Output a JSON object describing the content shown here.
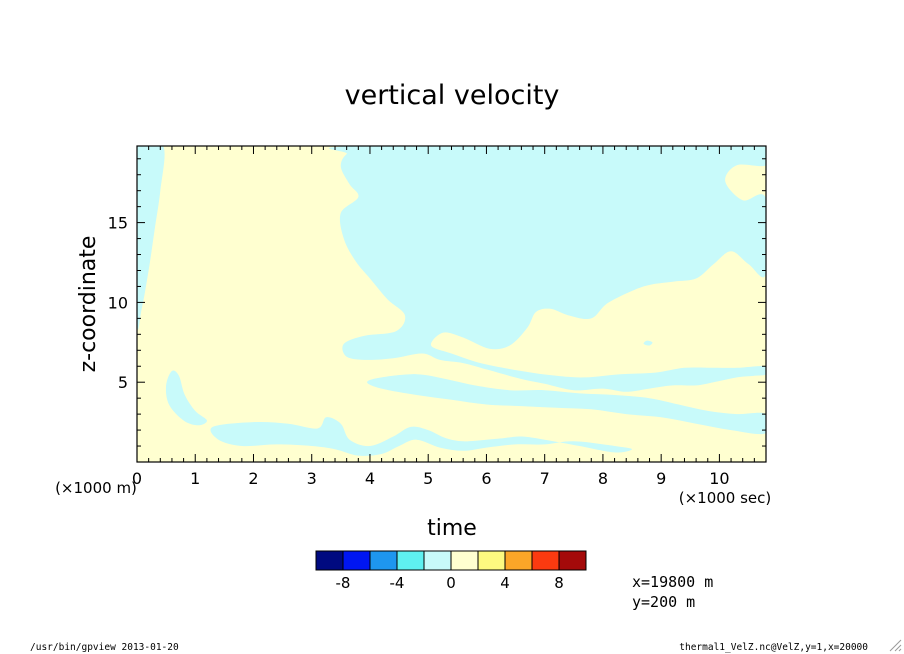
{
  "chart_data": {
    "type": "heatmap",
    "title": "vertical velocity",
    "xlabel": "time",
    "ylabel": "z-coordinate",
    "x_unit": "(×1000 sec)",
    "y_unit": "(×1000 m)",
    "xlim": [
      0,
      10.8
    ],
    "ylim": [
      0,
      19.8
    ],
    "x_ticks": [
      0,
      1,
      2,
      3,
      4,
      5,
      6,
      7,
      8,
      9,
      10
    ],
    "y_ticks": [
      5,
      10,
      15
    ],
    "colorbar": {
      "bins": [
        {
          "color": "#000a80",
          "lo": -10,
          "hi": -8
        },
        {
          "color": "#0016f2",
          "lo": -8,
          "hi": -6
        },
        {
          "color": "#1e96ef",
          "lo": -6,
          "hi": -4
        },
        {
          "color": "#5ff0f0",
          "lo": -4,
          "hi": -2
        },
        {
          "color": "#c8fafa",
          "lo": -2,
          "hi": 0
        },
        {
          "color": "#ffffd0",
          "lo": 0,
          "hi": 2
        },
        {
          "color": "#fdfa80",
          "lo": 2,
          "hi": 4
        },
        {
          "color": "#fba628",
          "lo": 4,
          "hi": 6
        },
        {
          "color": "#fb3a10",
          "lo": 6,
          "hi": 8
        },
        {
          "color": "#a40a0a",
          "lo": 8,
          "hi": 10
        }
      ],
      "tick_labels": [
        "-8",
        "-4",
        "0",
        "4",
        "8"
      ],
      "tick_values": [
        -8,
        -4,
        0,
        4,
        8
      ]
    },
    "negative_regions": [
      [
        [
          0,
          19.8
        ],
        [
          0.45,
          19.8
        ],
        [
          0.4,
          17
        ],
        [
          0.3,
          14.5
        ],
        [
          0.2,
          12
        ],
        [
          0.08,
          9.6
        ],
        [
          0,
          9.0
        ]
      ],
      [
        [
          0.6,
          5.7
        ],
        [
          0.72,
          5.4
        ],
        [
          0.82,
          4.2
        ],
        [
          1.0,
          3.2
        ],
        [
          1.2,
          2.6
        ],
        [
          1.05,
          2.3
        ],
        [
          0.8,
          2.6
        ],
        [
          0.55,
          3.6
        ],
        [
          0.5,
          4.8
        ]
      ],
      [
        [
          1.3,
          2.2
        ],
        [
          2.0,
          2.5
        ],
        [
          2.6,
          2.4
        ],
        [
          3.1,
          2.1
        ],
        [
          3.25,
          2.8
        ],
        [
          3.5,
          2.4
        ],
        [
          3.65,
          1.4
        ],
        [
          4.0,
          1.0
        ],
        [
          4.4,
          1.6
        ],
        [
          4.7,
          2.2
        ],
        [
          5.0,
          2.0
        ],
        [
          5.3,
          1.5
        ],
        [
          5.6,
          1.3
        ],
        [
          6.0,
          1.4
        ],
        [
          6.3,
          1.5
        ],
        [
          6.6,
          1.6
        ],
        [
          7.0,
          1.4
        ],
        [
          7.6,
          1.0
        ],
        [
          8.2,
          0.6
        ],
        [
          8.5,
          0.8
        ],
        [
          8.2,
          1.0
        ],
        [
          7.5,
          1.3
        ],
        [
          7.0,
          1.1
        ],
        [
          6.5,
          1.1
        ],
        [
          6.0,
          0.9
        ],
        [
          5.6,
          0.7
        ],
        [
          5.2,
          0.9
        ],
        [
          4.8,
          1.4
        ],
        [
          4.5,
          1.0
        ],
        [
          4.2,
          0.5
        ],
        [
          3.8,
          0.4
        ],
        [
          3.4,
          0.8
        ],
        [
          3.0,
          1.0
        ],
        [
          2.4,
          1.1
        ],
        [
          1.8,
          1.0
        ],
        [
          1.4,
          1.4
        ]
      ],
      [
        [
          10.8,
          5.5
        ],
        [
          10.6,
          5.4
        ],
        [
          10.3,
          5.3
        ],
        [
          9.9,
          5.0
        ],
        [
          9.6,
          4.8
        ],
        [
          9.2,
          4.8
        ],
        [
          8.8,
          4.6
        ],
        [
          8.4,
          4.4
        ],
        [
          8.0,
          4.6
        ],
        [
          7.5,
          4.5
        ],
        [
          7.0,
          4.9
        ],
        [
          6.6,
          5.2
        ],
        [
          6.0,
          5.8
        ],
        [
          5.6,
          6.2
        ],
        [
          5.2,
          6.4
        ],
        [
          4.9,
          6.8
        ],
        [
          4.4,
          6.5
        ],
        [
          3.95,
          6.4
        ],
        [
          3.6,
          6.6
        ],
        [
          3.55,
          7.4
        ],
        [
          3.9,
          7.9
        ],
        [
          4.45,
          8.2
        ],
        [
          4.6,
          9.2
        ],
        [
          4.3,
          10.2
        ],
        [
          4.0,
          11.5
        ],
        [
          3.75,
          12.6
        ],
        [
          3.55,
          14.0
        ],
        [
          3.5,
          15.6
        ],
        [
          3.8,
          16.6
        ],
        [
          3.65,
          17.4
        ],
        [
          3.5,
          18.5
        ],
        [
          3.6,
          19.3
        ],
        [
          3.9,
          19.8
        ],
        [
          10.8,
          19.8
        ],
        [
          10.8,
          18.6
        ],
        [
          10.3,
          18.6
        ],
        [
          10.1,
          17.6
        ],
        [
          10.4,
          16.4
        ],
        [
          10.8,
          16.5
        ],
        [
          10.8,
          11.8
        ],
        [
          10.5,
          12.4
        ],
        [
          10.2,
          13.2
        ],
        [
          9.9,
          12.4
        ],
        [
          9.6,
          11.5
        ],
        [
          9.2,
          11.3
        ],
        [
          8.7,
          11.0
        ],
        [
          8.1,
          10.0
        ],
        [
          7.8,
          9.0
        ],
        [
          7.4,
          9.2
        ],
        [
          7.1,
          9.6
        ],
        [
          6.85,
          9.4
        ],
        [
          6.7,
          8.4
        ],
        [
          6.4,
          7.3
        ],
        [
          6.05,
          7.1
        ],
        [
          5.6,
          7.8
        ],
        [
          5.25,
          8.1
        ],
        [
          5.05,
          7.3
        ],
        [
          5.4,
          6.8
        ],
        [
          5.9,
          6.2
        ],
        [
          6.6,
          5.7
        ],
        [
          7.2,
          5.4
        ],
        [
          7.7,
          5.3
        ],
        [
          8.3,
          5.5
        ],
        [
          8.9,
          5.6
        ],
        [
          9.4,
          5.9
        ],
        [
          9.9,
          5.9
        ],
        [
          10.3,
          5.9
        ],
        [
          10.8,
          6.0
        ]
      ],
      [
        [
          4.2,
          5.3
        ],
        [
          4.8,
          5.5
        ],
        [
          5.3,
          5.2
        ],
        [
          5.8,
          4.8
        ],
        [
          6.4,
          4.5
        ],
        [
          7.0,
          4.5
        ],
        [
          7.6,
          4.3
        ],
        [
          8.2,
          4.2
        ],
        [
          8.8,
          4.0
        ],
        [
          9.3,
          3.6
        ],
        [
          9.8,
          3.2
        ],
        [
          10.3,
          3.0
        ],
        [
          10.8,
          3.0
        ],
        [
          10.8,
          1.8
        ],
        [
          10.2,
          2.0
        ],
        [
          9.6,
          2.4
        ],
        [
          9.0,
          2.8
        ],
        [
          8.4,
          3.0
        ],
        [
          7.8,
          3.3
        ],
        [
          7.2,
          3.4
        ],
        [
          6.6,
          3.5
        ],
        [
          6.0,
          3.6
        ],
        [
          5.4,
          3.9
        ],
        [
          4.8,
          4.2
        ],
        [
          4.2,
          4.6
        ],
        [
          3.95,
          5.0
        ]
      ],
      [
        [
          6.9,
          12.9
        ],
        [
          7.1,
          13.2
        ],
        [
          7.4,
          12.2
        ],
        [
          7.5,
          10.8
        ],
        [
          7.2,
          10.2
        ],
        [
          6.9,
          10.7
        ],
        [
          6.8,
          11.8
        ]
      ],
      [
        [
          5.95,
          17.5
        ],
        [
          6.3,
          17.8
        ],
        [
          6.5,
          17.3
        ],
        [
          6.25,
          16.8
        ],
        [
          5.95,
          17.0
        ]
      ],
      [
        [
          4.9,
          12.4
        ],
        [
          5.2,
          12.1
        ],
        [
          5.35,
          11.8
        ],
        [
          5.05,
          11.9
        ],
        [
          4.85,
          12.1
        ]
      ],
      [
        [
          6.1,
          10.0
        ],
        [
          6.35,
          10.3
        ],
        [
          6.45,
          9.4
        ],
        [
          6.2,
          8.5
        ],
        [
          6.05,
          9.2
        ]
      ],
      [
        [
          8.75,
          7.6
        ],
        [
          8.85,
          7.5
        ],
        [
          8.8,
          7.3
        ],
        [
          8.7,
          7.4
        ]
      ]
    ]
  },
  "info": {
    "x_position": "x=19800 m",
    "y_position": "y=200 m",
    "footer_left": "/usr/bin/gpview  2013-01-20",
    "footer_right": "thermal1_VelZ.nc@VelZ,y=1,x=20000"
  }
}
